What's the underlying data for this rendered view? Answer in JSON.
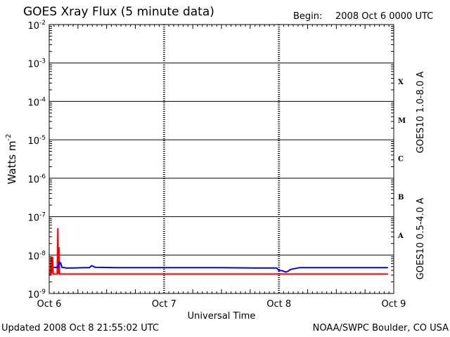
{
  "header": {
    "title": "GOES Xray Flux (5 minute data)",
    "begin_label": "Begin:",
    "begin_value": "2008 Oct 6 0000 UTC"
  },
  "footer": {
    "updated": "Updated 2008 Oct  8 21:55:02 UTC",
    "credit": "NOAA/SWPC Boulder, CO USA"
  },
  "chart_data": {
    "type": "line",
    "title": "GOES Xray Flux (5 minute data)",
    "xlabel": "Universal Time",
    "ylabel": "Watts m",
    "ylabel_superscript": "-2",
    "yscale": "log",
    "y_tick_labels": [
      {
        "base": "10",
        "exp": "-9"
      },
      {
        "base": "10",
        "exp": "-8"
      },
      {
        "base": "10",
        "exp": "-7"
      },
      {
        "base": "10",
        "exp": "-6"
      },
      {
        "base": "10",
        "exp": "-5"
      },
      {
        "base": "10",
        "exp": "-4"
      },
      {
        "base": "10",
        "exp": "-3"
      },
      {
        "base": "10",
        "exp": "-2"
      }
    ],
    "ylim_exponent": [
      -9,
      -2
    ],
    "x_tick_labels": [
      "Oct 6",
      "Oct 7",
      "Oct 8",
      "Oct 9"
    ],
    "xlim_days": [
      0,
      3
    ],
    "flare_classes": [
      "A",
      "B",
      "C",
      "M",
      "X"
    ],
    "grid": "horizontal lines at each decade, dashed vertical day markers",
    "series": [
      {
        "name": "GOES10 1.0-8.0 A",
        "color": "#ff0000",
        "points": [
          [
            0.0,
            3.2e-09
          ],
          [
            0.01,
            3.2e-09
          ],
          [
            0.015,
            9e-09
          ],
          [
            0.02,
            3.2e-09
          ],
          [
            0.03,
            9e-09
          ],
          [
            0.035,
            3.2e-09
          ],
          [
            0.04,
            3.2e-09
          ],
          [
            0.07,
            3.2e-09
          ],
          [
            0.075,
            5e-08
          ],
          [
            0.08,
            3.2e-09
          ],
          [
            0.085,
            1.6e-08
          ],
          [
            0.09,
            3.2e-09
          ],
          [
            0.1,
            3.2e-09
          ],
          [
            0.4,
            3.2e-09
          ],
          [
            0.7,
            3.2e-09
          ],
          [
            1.0,
            3.2e-09
          ],
          [
            1.3,
            3.2e-09
          ],
          [
            1.6,
            3.2e-09
          ],
          [
            2.0,
            3.2e-09
          ],
          [
            2.3,
            3.2e-09
          ],
          [
            2.6,
            3.2e-09
          ],
          [
            2.95,
            3.2e-09
          ]
        ]
      },
      {
        "name": "GOES10 0.5-4.0 A",
        "color": "#0000ff",
        "points": [
          [
            0.04,
            4.7e-09
          ],
          [
            0.05,
            4.8e-09
          ],
          [
            0.06,
            4.7e-09
          ],
          [
            0.07,
            5e-09
          ],
          [
            0.08,
            4.8e-09
          ],
          [
            0.09,
            6.5e-09
          ],
          [
            0.1,
            6.2e-09
          ],
          [
            0.11,
            4.8e-09
          ],
          [
            0.15,
            4.6e-09
          ],
          [
            0.2,
            4.6e-09
          ],
          [
            0.3,
            4.7e-09
          ],
          [
            0.35,
            4.7e-09
          ],
          [
            0.37,
            5.3e-09
          ],
          [
            0.4,
            4.8e-09
          ],
          [
            0.6,
            4.7e-09
          ],
          [
            0.8,
            4.7e-09
          ],
          [
            1.0,
            4.7e-09
          ],
          [
            1.15,
            4.7e-09
          ],
          [
            1.3,
            4.7e-09
          ],
          [
            1.5,
            4.7e-09
          ],
          [
            1.8,
            4.6e-09
          ],
          [
            1.98,
            4.6e-09
          ],
          [
            2.0,
            4e-09
          ],
          [
            2.03,
            3.9e-09
          ],
          [
            2.06,
            3.6e-09
          ],
          [
            2.08,
            3.8e-09
          ],
          [
            2.1,
            4.2e-09
          ],
          [
            2.13,
            4.4e-09
          ],
          [
            2.18,
            4.7e-09
          ],
          [
            2.3,
            4.7e-09
          ],
          [
            2.6,
            4.7e-09
          ],
          [
            2.95,
            4.7e-09
          ]
        ]
      }
    ]
  }
}
